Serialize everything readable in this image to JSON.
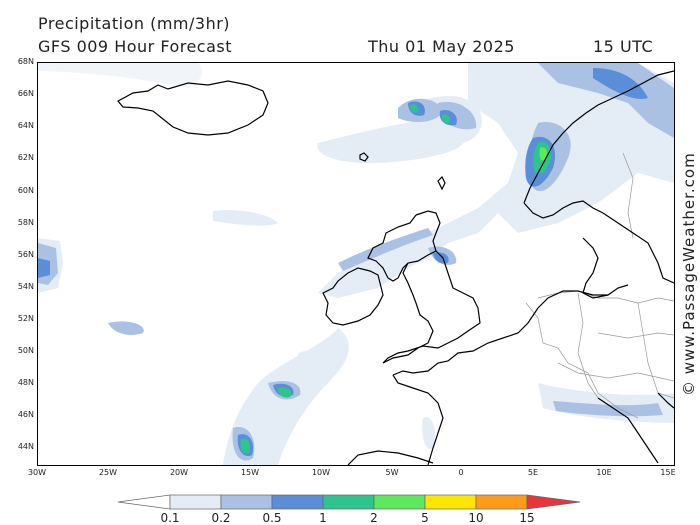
{
  "header": {
    "title": "Precipitation (mm/3hr)",
    "model": "GFS 009 Hour Forecast",
    "date": "Thu 01 May 2025",
    "time": "15 UTC"
  },
  "axes": {
    "lat_labels": [
      "68N",
      "66N",
      "64N",
      "62N",
      "60N",
      "58N",
      "56N",
      "54N",
      "52N",
      "50N",
      "48N",
      "46N",
      "44N"
    ],
    "lon_labels": [
      "30W",
      "25W",
      "20W",
      "15W",
      "10W",
      "5W",
      "0",
      "5E",
      "10E",
      "15E"
    ]
  },
  "legend": {
    "labels": [
      "0.1",
      "0.2",
      "0.5",
      "1",
      "2",
      "5",
      "10",
      "15"
    ],
    "colors": [
      "#ffffff",
      "#e4ecf6",
      "#aac1e4",
      "#5a8fd8",
      "#2dc48f",
      "#5de85d",
      "#ffe600",
      "#ff9b1a",
      "#e8353b"
    ]
  },
  "credit": "© www.PassageWeather.com"
}
